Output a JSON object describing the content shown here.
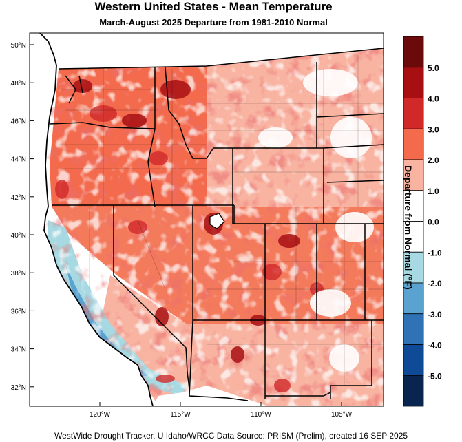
{
  "title": "Western United States - Mean Temperature",
  "subtitle": "March-August 2025  Departure from 1981-2010 Normal",
  "footer": "WestWide Drought Tracker, U Idaho/WRCC Data Source: PRISM (Prelim), created 16 SEP 2025",
  "colorbar": {
    "title": "Departure from Normal (°F)",
    "labels": [
      "5.0",
      "4.0",
      "3.0",
      "2.0",
      "1.0",
      "0.0",
      "-1.0",
      "-2.0",
      "-3.0",
      "-4.0",
      "-5.0"
    ],
    "colors": [
      "#6b0a0a",
      "#a80f13",
      "#d1292a",
      "#f36a4c",
      "#f8b3a1",
      "#ffffff",
      "#ffffff",
      "#a7d9e2",
      "#5aa2d0",
      "#2f73b6",
      "#0f4a96",
      "#0a2450"
    ]
  },
  "axes": {
    "lat_labels": [
      "50°N",
      "48°N",
      "46°N",
      "44°N",
      "42°N",
      "40°N",
      "38°N",
      "36°N",
      "34°N",
      "32°N"
    ],
    "lon_labels": [
      "120°W",
      "115°W",
      "110°W",
      "105°W"
    ]
  }
}
